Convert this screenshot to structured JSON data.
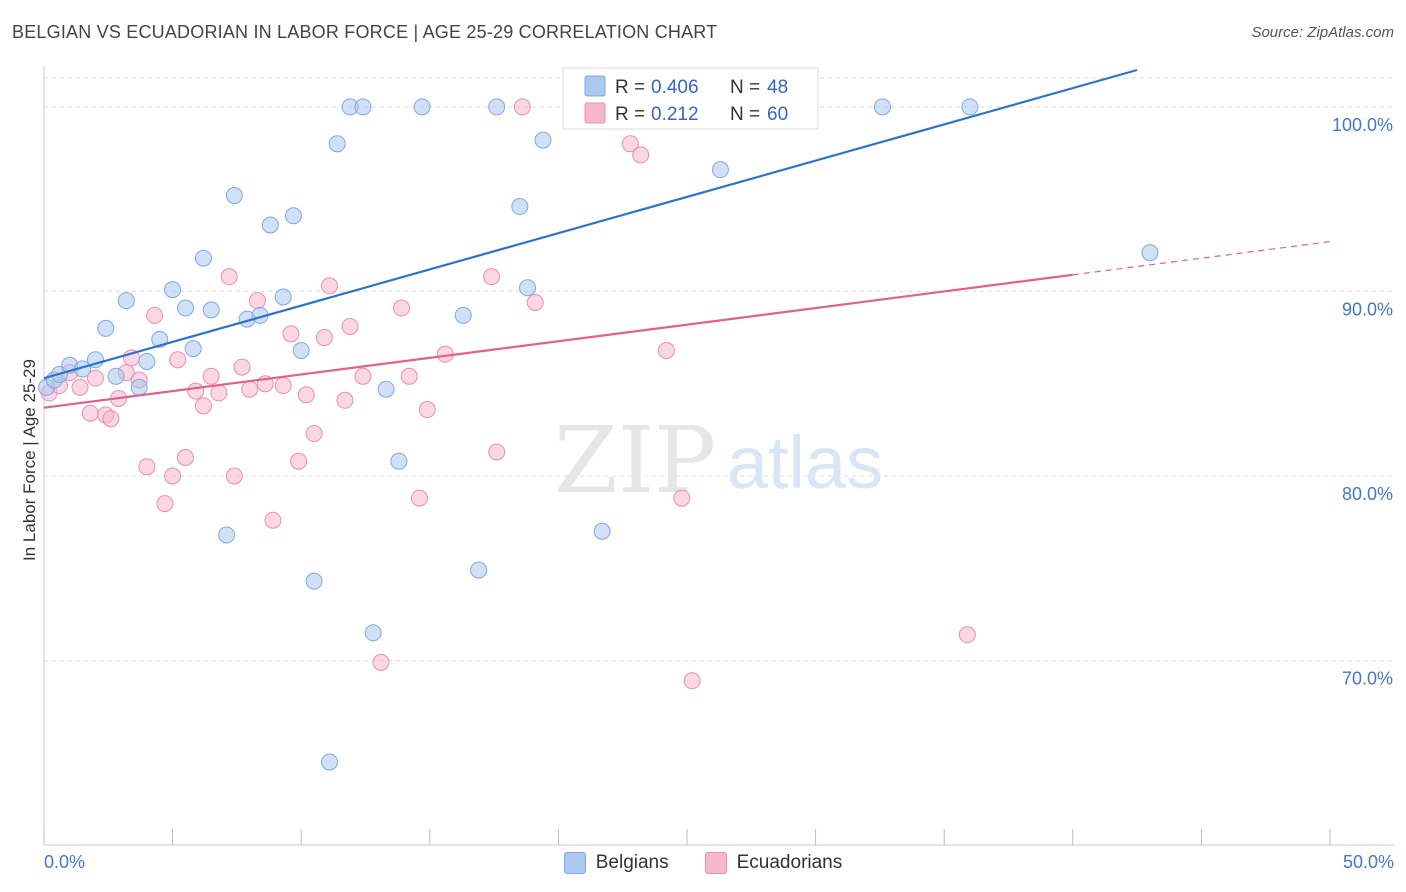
{
  "header": {
    "title": "BELGIAN VS ECUADORIAN IN LABOR FORCE | AGE 25-29 CORRELATION CHART",
    "source": "Source: ZipAtlas.com"
  },
  "watermark": {
    "zip": "ZIP",
    "atlas": "atlas"
  },
  "colors": {
    "belgian_fill": "#aac8f0",
    "belgian_line": "#2d72cc",
    "ecuadorian_fill": "#f6b6cc",
    "ecuadorian_line": "#e2608e",
    "tick_label": "#4477cc",
    "grid": "#dddddd"
  },
  "stats_legend": {
    "rows": [
      {
        "r_label": "R = ",
        "r_value": "0.406",
        "n_label": "N = ",
        "n_value": "48"
      },
      {
        "r_label": "R = ",
        "r_value": "0.212",
        "n_label": "N = ",
        "n_value": "60"
      }
    ]
  },
  "chart_data": {
    "type": "scatter",
    "title": "BELGIAN VS ECUADORIAN IN LABOR FORCE | AGE 25-29 CORRELATION CHART",
    "xlabel": "",
    "ylabel": "In Labor Force | Age 25-29",
    "xlim": [
      0,
      50
    ],
    "ylim": [
      60,
      102
    ],
    "x_tick_labels": [
      "0.0%",
      "50.0%"
    ],
    "y_ticks": [
      70,
      80,
      90,
      100
    ],
    "y_tick_labels": [
      "70.0%",
      "80.0%",
      "90.0%",
      "100.0%"
    ],
    "grid": true,
    "legend_position": "bottom",
    "series": [
      {
        "name": "Belgians",
        "color": "#aac8f0",
        "r": 0.406,
        "n": 48,
        "trend": {
          "x": [
            0.0,
            42.5
          ],
          "y": [
            85.3,
            102.0
          ]
        },
        "points": [
          [
            0.1,
            84.8
          ],
          [
            0.4,
            85.2
          ],
          [
            0.6,
            85.5
          ],
          [
            1.0,
            86.0
          ],
          [
            1.5,
            85.8
          ],
          [
            2.0,
            86.3
          ],
          [
            2.4,
            88.0
          ],
          [
            2.8,
            85.4
          ],
          [
            3.2,
            89.5
          ],
          [
            3.7,
            84.8
          ],
          [
            4.0,
            86.2
          ],
          [
            4.5,
            87.4
          ],
          [
            5.0,
            90.1
          ],
          [
            5.5,
            89.1
          ],
          [
            5.8,
            86.9
          ],
          [
            6.2,
            91.8
          ],
          [
            6.5,
            89.0
          ],
          [
            7.1,
            76.8
          ],
          [
            7.4,
            95.2
          ],
          [
            7.9,
            88.5
          ],
          [
            8.4,
            88.7
          ],
          [
            8.8,
            93.6
          ],
          [
            9.3,
            89.7
          ],
          [
            9.7,
            94.1
          ],
          [
            10.0,
            86.8
          ],
          [
            10.5,
            74.3
          ],
          [
            11.1,
            64.5
          ],
          [
            11.4,
            98.0
          ],
          [
            11.9,
            100.0
          ],
          [
            12.4,
            100.0
          ],
          [
            12.8,
            71.5
          ],
          [
            13.3,
            84.7
          ],
          [
            13.8,
            80.8
          ],
          [
            14.7,
            100.0
          ],
          [
            16.3,
            88.7
          ],
          [
            16.9,
            74.9
          ],
          [
            17.6,
            100.0
          ],
          [
            18.5,
            94.6
          ],
          [
            18.8,
            90.2
          ],
          [
            19.4,
            98.2
          ],
          [
            21.7,
            77.0
          ],
          [
            23.6,
            100.0
          ],
          [
            26.3,
            96.6
          ],
          [
            27.0,
            100.0
          ],
          [
            32.6,
            100.0
          ],
          [
            36.0,
            100.0
          ],
          [
            43.0,
            92.1
          ],
          [
            29.4,
            100.0
          ]
        ]
      },
      {
        "name": "Ecuadorians",
        "color": "#f6b6cc",
        "r": 0.212,
        "n": 60,
        "trend": {
          "x": [
            0.0,
            40.0
          ],
          "y": [
            83.7,
            90.9
          ]
        },
        "trend_dashed_extension": {
          "x": [
            40.0,
            50.0
          ],
          "y": [
            90.9,
            92.7
          ]
        },
        "points": [
          [
            0.2,
            84.5
          ],
          [
            0.6,
            84.9
          ],
          [
            1.0,
            85.6
          ],
          [
            1.4,
            84.8
          ],
          [
            1.8,
            83.4
          ],
          [
            2.0,
            85.3
          ],
          [
            2.4,
            83.3
          ],
          [
            2.6,
            83.1
          ],
          [
            2.9,
            84.2
          ],
          [
            3.2,
            85.6
          ],
          [
            3.4,
            86.4
          ],
          [
            3.7,
            85.2
          ],
          [
            4.0,
            80.5
          ],
          [
            4.3,
            88.7
          ],
          [
            4.7,
            78.5
          ],
          [
            5.0,
            80.0
          ],
          [
            5.2,
            86.3
          ],
          [
            5.5,
            81.0
          ],
          [
            5.9,
            84.6
          ],
          [
            6.2,
            83.8
          ],
          [
            6.5,
            85.4
          ],
          [
            6.8,
            84.5
          ],
          [
            7.2,
            90.8
          ],
          [
            7.4,
            80.0
          ],
          [
            7.7,
            85.9
          ],
          [
            8.0,
            84.7
          ],
          [
            8.3,
            89.5
          ],
          [
            8.6,
            85.0
          ],
          [
            8.9,
            77.6
          ],
          [
            9.3,
            84.9
          ],
          [
            9.6,
            87.7
          ],
          [
            9.9,
            80.8
          ],
          [
            10.2,
            84.4
          ],
          [
            10.5,
            82.3
          ],
          [
            10.9,
            87.5
          ],
          [
            11.1,
            90.3
          ],
          [
            11.7,
            84.1
          ],
          [
            11.9,
            88.1
          ],
          [
            12.4,
            85.4
          ],
          [
            13.1,
            69.9
          ],
          [
            13.9,
            89.1
          ],
          [
            14.2,
            85.4
          ],
          [
            14.6,
            78.8
          ],
          [
            14.9,
            83.6
          ],
          [
            15.6,
            86.6
          ],
          [
            17.4,
            90.8
          ],
          [
            17.6,
            81.3
          ],
          [
            18.6,
            100.0
          ],
          [
            19.1,
            89.4
          ],
          [
            21.2,
            100.0
          ],
          [
            22.4,
            100.0
          ],
          [
            22.8,
            98.0
          ],
          [
            23.2,
            97.4
          ],
          [
            23.9,
            100.0
          ],
          [
            24.2,
            86.8
          ],
          [
            24.8,
            78.8
          ],
          [
            25.2,
            68.9
          ],
          [
            26.9,
            100.0
          ],
          [
            35.9,
            71.4
          ],
          [
            22.0,
            100.0
          ]
        ]
      }
    ]
  }
}
